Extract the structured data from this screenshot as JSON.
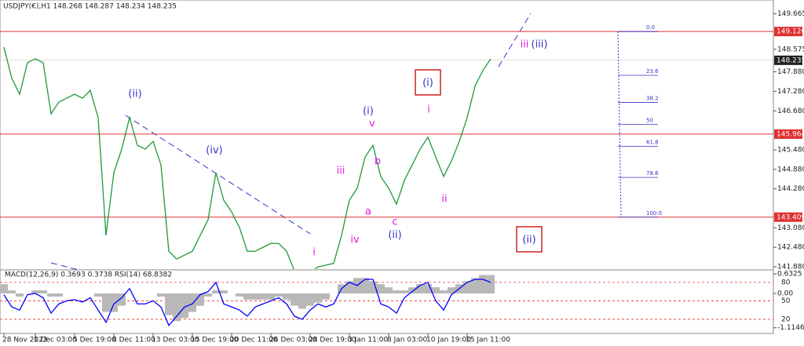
{
  "chart_data": [
    {
      "type": "line",
      "title": "USDJPY(€),H1  148.268 148.287 148.234 148.235",
      "color": "#1f9a3a",
      "categories": [
        "28 Nov 2023",
        null,
        null,
        null,
        "1 Dec 03:00",
        null,
        null,
        null,
        null,
        "5 Dec 19:00",
        null,
        null,
        null,
        null,
        "8 Dec 11:00",
        null,
        null,
        null,
        null,
        "13 Dec 03:00",
        null,
        null,
        null,
        null,
        "15 Dec 19:00",
        null,
        null,
        null,
        null,
        "20 Dec 11:00",
        null,
        null,
        null,
        null,
        "26 Dec 03:00",
        null,
        null,
        null,
        null,
        "28 Dec 19:00",
        null,
        null,
        null,
        null,
        "3 Jan 11:00",
        null,
        null,
        null,
        null,
        "8 Jan 03:00",
        null,
        null,
        null,
        null,
        "10 Jan 19:00",
        null,
        null,
        null,
        null,
        "15 Jan 11:00",
        null,
        null,
        null
      ],
      "values": [
        148.64,
        147.68,
        147.19,
        148.16,
        148.28,
        148.16,
        146.59,
        146.95,
        147.07,
        147.19,
        147.07,
        147.31,
        146.47,
        142.85,
        144.78,
        145.5,
        146.47,
        145.62,
        145.5,
        145.74,
        145.02,
        142.36,
        142.12,
        142.24,
        142.36,
        142.85,
        143.33,
        144.78,
        143.93,
        143.57,
        143.09,
        142.36,
        142.36,
        142.48,
        142.6,
        142.6,
        142.36,
        141.76,
        141.64,
        141.69,
        141.88,
        141.93,
        141.99,
        142.85,
        143.93,
        144.3,
        145.26,
        145.62,
        144.66,
        144.3,
        143.81,
        144.54,
        145.02,
        145.5,
        145.87,
        145.26,
        144.66,
        145.14,
        145.74,
        146.47,
        147.44,
        147.92,
        148.28
      ],
      "ylim": [
        141.81,
        150.09
      ],
      "yticks": [
        {
          "value": 141.88,
          "label": "141.880"
        },
        {
          "value": 142.48,
          "label": "142.480"
        },
        {
          "value": 143.08,
          "label": "143.080"
        },
        {
          "value": 144.28,
          "label": "144.280"
        },
        {
          "value": 144.88,
          "label": "144.880"
        },
        {
          "value": 145.48,
          "label": "145.480"
        },
        {
          "value": 146.68,
          "label": "146.680"
        },
        {
          "value": 147.28,
          "label": "147.280"
        },
        {
          "value": 147.88,
          "label": "147.880"
        },
        {
          "value": 148.575,
          "label": "148.575"
        },
        {
          "value": 149.665,
          "label": "149.665"
        }
      ],
      "levels": [
        {
          "value": 149.12,
          "label": "149.120"
        },
        {
          "value": 145.964,
          "label": "145.964"
        },
        {
          "value": 143.409,
          "label": "143.409"
        }
      ],
      "level_color": "#e03030",
      "current_price": 148.235,
      "fib_levels": [
        {
          "value": 0,
          "label": "0.0"
        },
        23.6,
        38.2,
        50,
        61.8,
        78.6,
        {
          "value": 100,
          "label": "100.0"
        }
      ],
      "annotations": [
        {
          "text": "(ii)",
          "color": "#3333cc"
        },
        {
          "text": "(iv)",
          "color": "#3333cc"
        },
        {
          "text": "(i)",
          "color": "#3333cc"
        },
        {
          "text": "v",
          "color": "#e020e0"
        },
        {
          "text": "iii",
          "color": "#e020e0"
        },
        {
          "text": "b",
          "color": "#e020e0"
        },
        {
          "text": "a",
          "color": "#e020e0"
        },
        {
          "text": "iv",
          "color": "#e020e0"
        },
        {
          "text": "c",
          "color": "#e020e0"
        },
        {
          "text": "(ii)",
          "color": "#3333cc"
        },
        {
          "text": "i",
          "color": "#e020e0"
        },
        {
          "text": "i",
          "color": "#e020e0"
        },
        {
          "text": "ii",
          "color": "#e020e0"
        },
        {
          "text": "iii",
          "color": "#e020e0"
        },
        {
          "text": "(iii)",
          "color": "#3333cc"
        },
        {
          "text": "(i)",
          "color": "#3333cc"
        },
        {
          "text": "(ii)",
          "color": "#3333cc"
        }
      ]
    },
    {
      "type": "line",
      "title": "MACD(12,26,9) 0.3693 0.3738 RSI(14) 68.8382",
      "series": [
        {
          "type": "bar",
          "color": "#b8b8b8",
          "values": [
            0.3,
            0.1,
            -0.1,
            0,
            0.1,
            0.1,
            -0.1,
            -0.1,
            0,
            0,
            0,
            0,
            -0.1,
            -0.6,
            -0.6,
            -0.4,
            0,
            0,
            0,
            0,
            -0.1,
            -0.7,
            -0.9,
            -0.8,
            -0.6,
            -0.4,
            -0.1,
            0.1,
            0.1,
            0,
            -0.1,
            -0.2,
            -0.2,
            -0.2,
            -0.2,
            -0.1,
            -0.2,
            -0.4,
            -0.5,
            -0.4,
            -0.3,
            -0.2,
            0,
            0.3,
            0.4,
            0.5,
            0.5,
            0.4,
            0.3,
            0.2,
            0.1,
            0.1,
            0.2,
            0.3,
            0.3,
            0.2,
            0.1,
            0.2,
            0.3,
            0.4,
            0.5,
            0.6,
            0.6
          ]
        },
        {
          "type": "line",
          "color": "#0000ff",
          "axis": "y2",
          "values": [
            60,
            40,
            35,
            60,
            62,
            55,
            30,
            45,
            50,
            52,
            48,
            55,
            35,
            15,
            45,
            55,
            70,
            45,
            45,
            50,
            40,
            10,
            25,
            40,
            45,
            60,
            65,
            80,
            45,
            40,
            35,
            25,
            40,
            45,
            50,
            55,
            45,
            25,
            20,
            35,
            45,
            40,
            45,
            70,
            80,
            75,
            85,
            85,
            45,
            40,
            30,
            55,
            65,
            75,
            80,
            50,
            35,
            60,
            70,
            80,
            85,
            85,
            80
          ]
        }
      ],
      "ylim": [
        -1.3,
        0.74
      ],
      "yticks": [
        0.6325,
        {
          "value": 0,
          "label": "0.00"
        },
        -1.1146
      ],
      "y2lim": [
        -3,
        99
      ],
      "y2ticks": [
        80,
        50,
        20
      ]
    }
  ]
}
